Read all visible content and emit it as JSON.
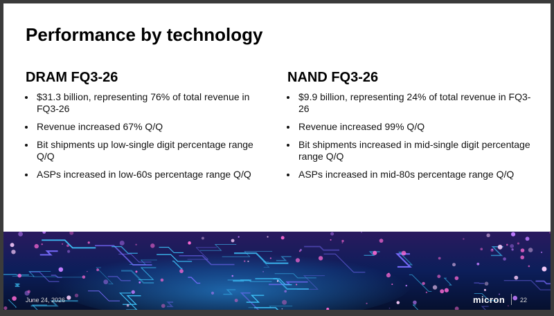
{
  "title": "Performance by technology",
  "columns": [
    {
      "heading": "DRAM FQ3-26",
      "bullets": [
        "$31.3 billion, representing 76% of total revenue in FQ3-26",
        "Revenue increased 67% Q/Q",
        "Bit shipments up low-single digit percentage range Q/Q",
        "ASPs increased in low-60s percentage range Q/Q"
      ]
    },
    {
      "heading": "NAND FQ3-26",
      "bullets": [
        "$9.9 billion, representing 24% of total revenue in FQ3-26",
        "Revenue increased 99% Q/Q",
        "Bit shipments increased in mid-single digit percentage range Q/Q",
        "ASPs increased in mid-80s percentage range Q/Q"
      ]
    }
  ],
  "footer": {
    "date": "June 24, 2026",
    "logo": "micron",
    "page": "22"
  }
}
